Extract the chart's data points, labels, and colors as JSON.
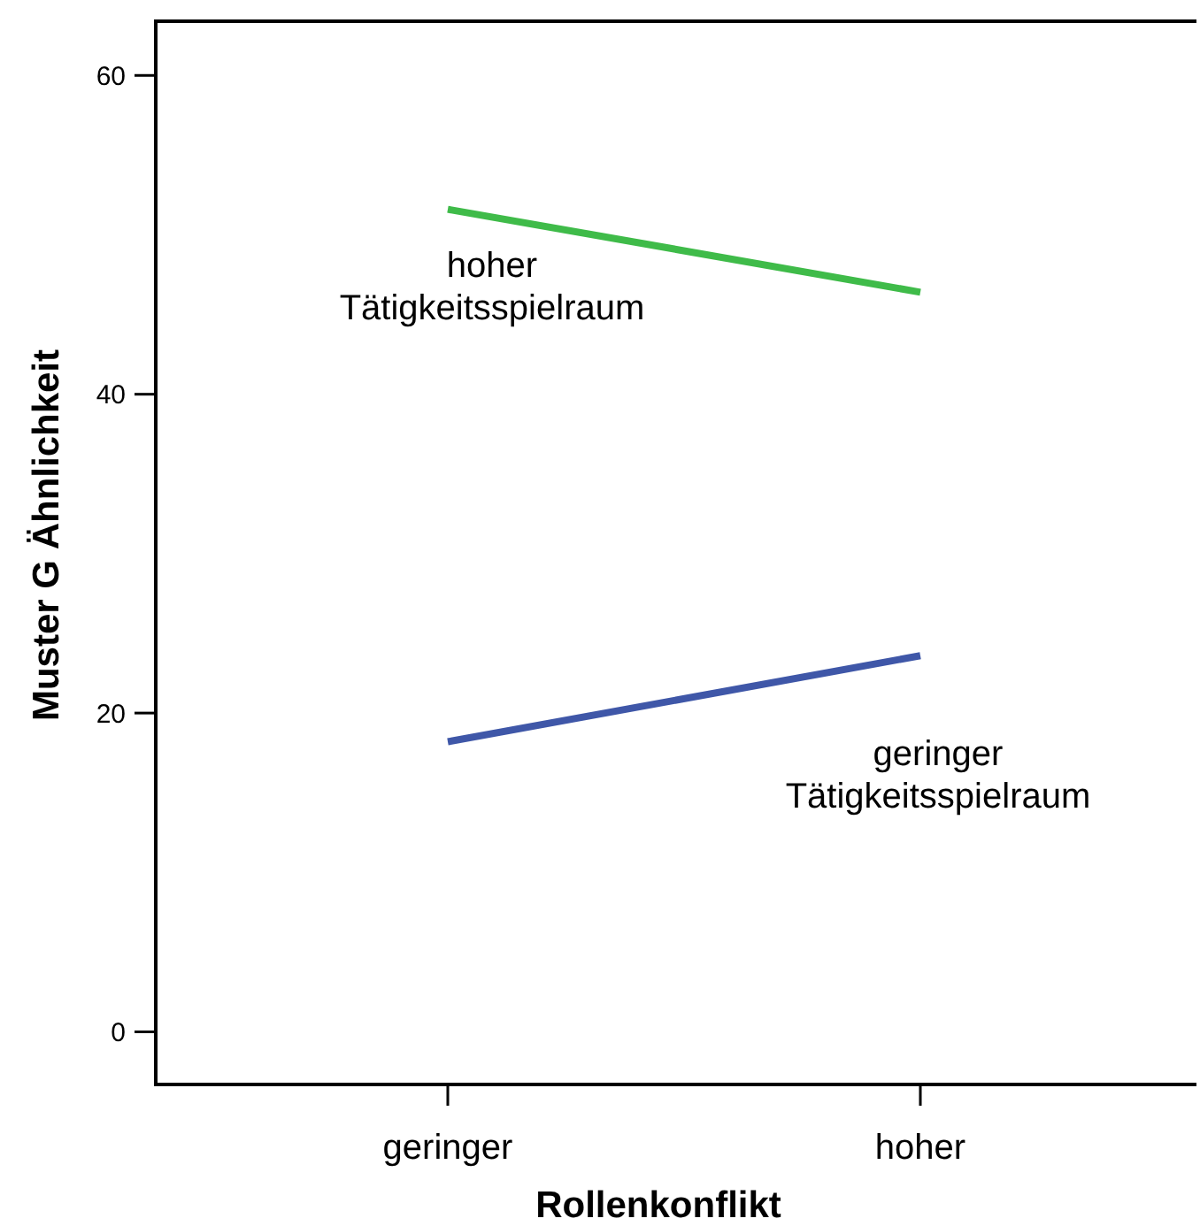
{
  "chart_data": {
    "type": "line",
    "xlabel": "Rollenkonflikt",
    "ylabel": "Muster G Ähnlichkeit",
    "categories": [
      "geringer",
      "hoher"
    ],
    "ylim": [
      -3.3,
      63.4
    ],
    "yticks": [
      0,
      20,
      40,
      60
    ],
    "grid": false,
    "line_style": "solid",
    "series": [
      {
        "name": "hoher Tätigkeitsspielraum",
        "color": "#3fbb49",
        "values": [
          51.6,
          46.4
        ]
      },
      {
        "name": "geringer Tätigkeitsspielraum",
        "color": "#3f57a8",
        "values": [
          18.2,
          23.6
        ]
      }
    ]
  }
}
